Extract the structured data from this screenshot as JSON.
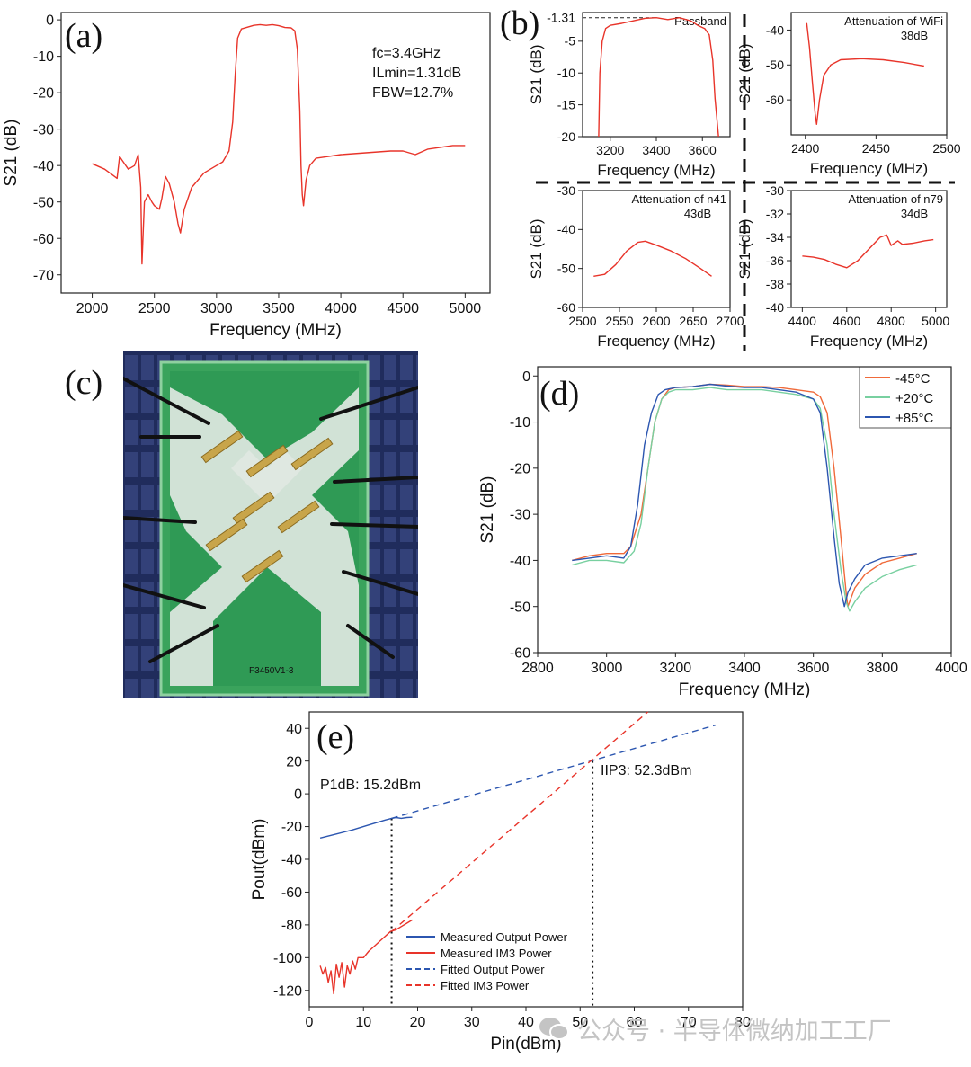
{
  "panel_labels": {
    "a": "(a)",
    "b": "(b)",
    "c": "(c)",
    "d": "(d)",
    "e": "(e)"
  },
  "colors": {
    "red": "#e8342a",
    "blue": "#2c56b0",
    "green": "#78d0a0",
    "orange": "#f06a3a"
  },
  "chart_data": [
    {
      "id": "a",
      "type": "line",
      "xlabel": "Frequency (MHz)",
      "ylabel": "S21 (dB)",
      "xlim": [
        1750,
        5200
      ],
      "ylim": [
        -75,
        2
      ],
      "xticks": [
        2000,
        2500,
        3000,
        3500,
        4000,
        4500,
        5000
      ],
      "yticks": [
        0,
        -10,
        -20,
        -30,
        -40,
        -50,
        -60,
        -70
      ],
      "annotations": [
        "fc=3.4GHz",
        "ILmin=1.31dB",
        "FBW=12.7%"
      ],
      "series": [
        {
          "name": "S21",
          "color": "#e8342a",
          "x": [
            2000,
            2100,
            2200,
            2220,
            2240,
            2290,
            2340,
            2370,
            2390,
            2400,
            2410,
            2420,
            2450,
            2480,
            2500,
            2540,
            2560,
            2590,
            2620,
            2660,
            2690,
            2710,
            2740,
            2800,
            2900,
            3000,
            3050,
            3100,
            3130,
            3150,
            3170,
            3200,
            3250,
            3300,
            3350,
            3400,
            3450,
            3500,
            3550,
            3600,
            3630,
            3650,
            3670,
            3680,
            3690,
            3700,
            3720,
            3750,
            3800,
            3900,
            4000,
            4200,
            4400,
            4500,
            4600,
            4700,
            4800,
            4900,
            5000
          ],
          "y": [
            -39.5,
            -41,
            -43.5,
            -37.5,
            -38.5,
            -41,
            -40,
            -37,
            -46,
            -67,
            -58,
            -50,
            -48,
            -50,
            -51,
            -52,
            -49,
            -43,
            -45,
            -50,
            -56,
            -58.5,
            -52,
            -46,
            -42,
            -40,
            -39,
            -36,
            -28,
            -15,
            -5,
            -2.5,
            -2,
            -1.5,
            -1.3,
            -1.5,
            -1.3,
            -1.6,
            -2.1,
            -2.2,
            -3,
            -8,
            -25,
            -40,
            -48,
            -51,
            -44,
            -40,
            -38,
            -37.5,
            -37,
            -36.5,
            -36,
            -36,
            -37,
            -35.5,
            -35,
            -34.5,
            -34.5
          ]
        }
      ]
    },
    {
      "id": "b1",
      "type": "line",
      "title": "Passband",
      "xlabel": "Frequency (MHz)",
      "ylabel": "S21 (dB)",
      "xlim": [
        3080,
        3720
      ],
      "ylim": [
        -20,
        -0.5
      ],
      "xticks": [
        3200,
        3400,
        3600
      ],
      "yticks": [
        -5,
        -10,
        -15,
        -20
      ],
      "ytick_extra": "-1.31",
      "series": [
        {
          "name": "S21",
          "color": "#e8342a",
          "x": [
            3150,
            3155,
            3165,
            3180,
            3200,
            3250,
            3300,
            3350,
            3400,
            3450,
            3500,
            3550,
            3580,
            3610,
            3630,
            3645,
            3655,
            3665,
            3670
          ],
          "y": [
            -20,
            -10,
            -5,
            -3,
            -2.5,
            -2.2,
            -1.8,
            -1.4,
            -1.31,
            -1.6,
            -1.3,
            -1.8,
            -2.5,
            -3,
            -4,
            -8,
            -14,
            -18,
            -20
          ]
        }
      ]
    },
    {
      "id": "b2",
      "type": "line",
      "title": "Attenuation of WiFi",
      "subtitle": "38dB",
      "xlabel": "Frequency (MHz)",
      "ylabel": "S21 (dB)",
      "xlim": [
        2390,
        2500
      ],
      "ylim": [
        -70,
        -35
      ],
      "xticks": [
        2400,
        2450,
        2500
      ],
      "yticks": [
        -40,
        -50,
        -60
      ],
      "series": [
        {
          "name": "S21",
          "color": "#e8342a",
          "x": [
            2401,
            2403,
            2405,
            2407,
            2408,
            2410,
            2413,
            2418,
            2425,
            2440,
            2455,
            2470,
            2484
          ],
          "y": [
            -38,
            -45,
            -55,
            -64,
            -67,
            -60,
            -53,
            -50,
            -48.5,
            -48.2,
            -48.5,
            -49.3,
            -50.3
          ]
        }
      ]
    },
    {
      "id": "b3",
      "type": "line",
      "title": "Attenuation of n41",
      "subtitle": "43dB",
      "xlabel": "Frequency (MHz)",
      "ylabel": "S21 (dB)",
      "xlim": [
        2500,
        2700
      ],
      "ylim": [
        -60,
        -30
      ],
      "xticks": [
        2500,
        2550,
        2600,
        2650,
        2700
      ],
      "yticks": [
        -30,
        -40,
        -50,
        -60
      ],
      "series": [
        {
          "name": "S21",
          "color": "#e8342a",
          "x": [
            2515,
            2530,
            2545,
            2560,
            2575,
            2585,
            2600,
            2620,
            2640,
            2660,
            2675
          ],
          "y": [
            -52,
            -51.5,
            -49,
            -45.5,
            -43.3,
            -43,
            -44,
            -45.5,
            -47.5,
            -50,
            -52
          ]
        }
      ]
    },
    {
      "id": "b4",
      "type": "line",
      "title": "Attenuation of n79",
      "subtitle": "34dB",
      "xlabel": "Frequency (MHz)",
      "ylabel": "S21 (dB)",
      "xlim": [
        4350,
        5050
      ],
      "ylim": [
        -40,
        -30
      ],
      "xticks": [
        4400,
        4600,
        4800,
        5000
      ],
      "yticks": [
        -30,
        -32,
        -34,
        -36,
        -38,
        -40
      ],
      "series": [
        {
          "name": "S21",
          "color": "#e8342a",
          "x": [
            4400,
            4450,
            4500,
            4550,
            4600,
            4650,
            4700,
            4750,
            4780,
            4800,
            4830,
            4850,
            4900,
            4950,
            4990
          ],
          "y": [
            -35.6,
            -35.7,
            -35.9,
            -36.3,
            -36.6,
            -36.0,
            -35.0,
            -34.0,
            -33.8,
            -34.7,
            -34.3,
            -34.6,
            -34.5,
            -34.3,
            -34.2
          ]
        }
      ]
    },
    {
      "id": "d",
      "type": "line",
      "xlabel": "Frequency (MHz)",
      "ylabel": "S21 (dB)",
      "xlim": [
        2800,
        4000
      ],
      "ylim": [
        -60,
        2
      ],
      "xticks": [
        2800,
        3000,
        3200,
        3400,
        3600,
        3800,
        4000
      ],
      "yticks": [
        0,
        -10,
        -20,
        -30,
        -40,
        -50,
        -60
      ],
      "series": [
        {
          "name": "-45°C",
          "color": "#f06a3a",
          "x": [
            2900,
            2950,
            3000,
            3050,
            3070,
            3100,
            3120,
            3140,
            3160,
            3180,
            3200,
            3250,
            3300,
            3350,
            3400,
            3450,
            3500,
            3550,
            3600,
            3620,
            3640,
            3660,
            3680,
            3695,
            3700,
            3720,
            3750,
            3800,
            3850,
            3900
          ],
          "y": [
            -40,
            -39,
            -38.5,
            -38.5,
            -37,
            -30,
            -20,
            -10,
            -5,
            -3,
            -2.5,
            -2.3,
            -1.8,
            -2,
            -2.3,
            -2.3,
            -2.5,
            -3,
            -3.5,
            -4.5,
            -8,
            -20,
            -35,
            -47,
            -50,
            -46,
            -43,
            -40.5,
            -39.5,
            -38.5
          ]
        },
        {
          "name": "+20°C",
          "color": "#78d0a0",
          "x": [
            2900,
            2950,
            3000,
            3050,
            3080,
            3100,
            3120,
            3140,
            3160,
            3180,
            3200,
            3250,
            3300,
            3350,
            3400,
            3450,
            3500,
            3550,
            3600,
            3620,
            3640,
            3660,
            3680,
            3695,
            3705,
            3720,
            3750,
            3800,
            3850,
            3900
          ],
          "y": [
            -41,
            -40,
            -40,
            -40.5,
            -38,
            -32,
            -20,
            -10,
            -5,
            -3.5,
            -3,
            -3,
            -2.5,
            -3,
            -3,
            -3,
            -3.5,
            -4,
            -5,
            -7,
            -15,
            -30,
            -42,
            -49,
            -51,
            -49,
            -46,
            -43.5,
            -42,
            -41
          ]
        },
        {
          "name": "+85°C",
          "color": "#2c56b0",
          "x": [
            2900,
            2950,
            3000,
            3050,
            3070,
            3090,
            3110,
            3130,
            3150,
            3170,
            3200,
            3250,
            3300,
            3350,
            3400,
            3450,
            3500,
            3550,
            3600,
            3620,
            3640,
            3660,
            3675,
            3690,
            3700,
            3720,
            3750,
            3800,
            3850,
            3900
          ],
          "y": [
            -40,
            -39.5,
            -39,
            -39.5,
            -37,
            -28,
            -15,
            -8,
            -4,
            -3,
            -2.5,
            -2.3,
            -1.8,
            -2.2,
            -2.5,
            -2.5,
            -3,
            -3.5,
            -5,
            -8,
            -20,
            -35,
            -45,
            -50,
            -47,
            -44,
            -41,
            -39.5,
            -39,
            -38.5
          ]
        }
      ]
    },
    {
      "id": "e",
      "type": "line",
      "xlabel": "Pin(dBm)",
      "ylabel": "Pout(dBm)",
      "xlim": [
        0,
        80
      ],
      "ylim": [
        -130,
        50
      ],
      "xticks": [
        0,
        10,
        20,
        30,
        40,
        50,
        60,
        70,
        80
      ],
      "yticks": [
        40,
        20,
        0,
        -20,
        -40,
        -60,
        -80,
        -100,
        -120
      ],
      "annotations": [
        "P1dB: 15.2dBm",
        "IIP3: 52.3dBm"
      ],
      "markers_x": [
        15.2,
        52.3
      ],
      "series": [
        {
          "name": "Measured Output Power",
          "color": "#2c56b0",
          "dash": "solid",
          "x": [
            2,
            5,
            8,
            11,
            14,
            15.2,
            16,
            17,
            18,
            19
          ],
          "y": [
            -27,
            -24.5,
            -22,
            -19,
            -16,
            -15,
            -14.5,
            -15,
            -14.5,
            -14.3
          ]
        },
        {
          "name": "Measured IM3 Power",
          "color": "#e8342a",
          "dash": "solid",
          "x": [
            2,
            2.5,
            3,
            3.5,
            4,
            4.5,
            5,
            5.5,
            6,
            6.5,
            7,
            7.5,
            8,
            8.5,
            9,
            10,
            11,
            12,
            13,
            14,
            15,
            16,
            17,
            18,
            19
          ],
          "y": [
            -105,
            -110,
            -106,
            -115,
            -108,
            -122,
            -104,
            -112,
            -103,
            -118,
            -105,
            -110,
            -102,
            -107,
            -100,
            -100,
            -96,
            -93,
            -90,
            -87,
            -84,
            -83,
            -81,
            -79,
            -77
          ]
        },
        {
          "name": "Fitted Output Power",
          "color": "#2c56b0",
          "dash": "dashed",
          "x": [
            15.2,
            75
          ],
          "y": [
            -15,
            42
          ]
        },
        {
          "name": "Fitted IM3 Power",
          "color": "#e8342a",
          "dash": "dashed",
          "x": [
            15.2,
            62.5
          ],
          "y": [
            -84,
            50
          ]
        }
      ]
    }
  ],
  "photo": {
    "chip_label": "F3450V1-3"
  },
  "watermark": {
    "text": "公众号 · 半导体微纳加工工厂"
  }
}
